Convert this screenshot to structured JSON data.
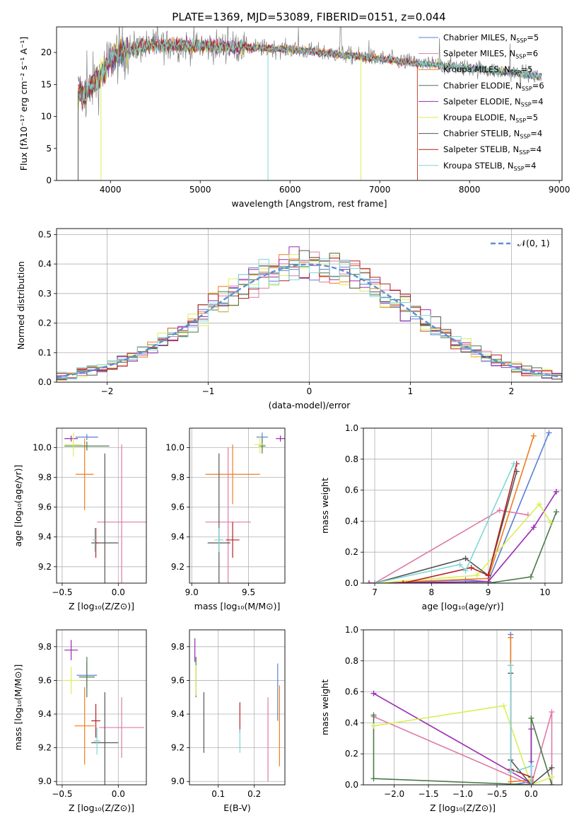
{
  "figure": {
    "title": "PLATE=1369, MJD=53089, FIBERID=0151, z=0.044"
  },
  "colors": [
    "#5b7fd6",
    "#e07aa8",
    "#f07d1e",
    "#4b7a4b",
    "#9a2bb0",
    "#d9ef57",
    "#555555",
    "#b22222",
    "#7fd6d6"
  ],
  "legend": [
    {
      "name": "Chabrier MILES",
      "nssp": 5
    },
    {
      "name": "Salpeter MILES",
      "nssp": 6
    },
    {
      "name": "Kroupa MILES",
      "nssp": 5
    },
    {
      "name": "Chabrier ELODIE",
      "nssp": 6
    },
    {
      "name": "Salpeter ELODIE",
      "nssp": 4
    },
    {
      "name": "Kroupa ELODIE",
      "nssp": 5
    },
    {
      "name": "Chabrier STELIB",
      "nssp": 4
    },
    {
      "name": "Salpeter STELIB",
      "nssp": 4
    },
    {
      "name": "Kroupa STELIB",
      "nssp": 4
    }
  ],
  "chart_data": [
    {
      "id": "spectrum",
      "type": "line",
      "xlabel": "wavelength [Angstrom, rest frame]",
      "ylabel": "Flux [fλ10⁻¹⁷ erg cm⁻² s⁻¹ A⁻¹]",
      "xlim": [
        3400,
        9030
      ],
      "ylim": [
        0,
        24
      ],
      "xticks": [
        4000,
        5000,
        6000,
        7000,
        8000,
        9000
      ],
      "yticks": [
        0,
        5,
        10,
        15,
        20
      ],
      "data_color": "#808080",
      "continuum": [
        [
          3640,
          14
        ],
        [
          3700,
          13
        ],
        [
          3800,
          15
        ],
        [
          3900,
          16.5
        ],
        [
          4000,
          19
        ],
        [
          4100,
          20
        ],
        [
          4200,
          20.5
        ],
        [
          4400,
          21
        ],
        [
          4700,
          21.2
        ],
        [
          5000,
          21
        ],
        [
          5500,
          20.8
        ],
        [
          6000,
          20.5
        ],
        [
          6500,
          19.8
        ],
        [
          7000,
          19
        ],
        [
          7500,
          18.2
        ],
        [
          8000,
          17.6
        ],
        [
          8500,
          16.8
        ],
        [
          8800,
          16.3
        ]
      ],
      "model_extents": [
        [
          3640,
          8800
        ],
        [
          3640,
          8800
        ],
        [
          3640,
          7420
        ],
        [
          3640,
          8800
        ],
        [
          3640,
          8800
        ],
        [
          3640,
          8800
        ],
        [
          3640,
          8800
        ],
        [
          3640,
          7420
        ],
        [
          3640,
          8800
        ]
      ]
    },
    {
      "id": "residuals",
      "type": "histogram",
      "xlabel": "(data-model)/error",
      "ylabel": "Normed distribution",
      "xlim": [
        -2.5,
        2.5
      ],
      "ylim": [
        0,
        0.52
      ],
      "xticks": [
        -2,
        -1,
        0,
        1,
        2
      ],
      "yticks": [
        0.0,
        0.1,
        0.2,
        0.3,
        0.4,
        0.5
      ],
      "bin_width": 0.1,
      "gaussian_label": "𝒩(0, 1)",
      "gaussian_color": "#5b8fd6"
    },
    {
      "id": "age_vs_Z",
      "type": "scatter",
      "xlabel": "Z [log₁₀(Z/Z⊙)]",
      "ylabel": "age  [log₁₀(age/yr)]",
      "xlim": [
        -0.55,
        0.25
      ],
      "ylim": [
        9.09,
        10.13
      ],
      "xticks": [
        -0.5,
        0.0
      ],
      "yticks": [
        9.2,
        9.4,
        9.6,
        9.8,
        10.0
      ],
      "points": [
        {
          "x": -0.28,
          "y": 10.07,
          "xerr": 0.1,
          "yerr": 0.02
        },
        {
          "x": 0.03,
          "y": 9.5,
          "xerr": 0.22,
          "yerr": 0.52
        },
        {
          "x": -0.3,
          "y": 9.82,
          "xerr": 0.08,
          "yerr": 0.24
        },
        {
          "x": -0.28,
          "y": 10.01,
          "xerr": 0.2,
          "yerr": 0.03
        },
        {
          "x": -0.42,
          "y": 10.06,
          "xerr": 0.06,
          "yerr": 0.02
        },
        {
          "x": -0.4,
          "y": 10.02,
          "xerr": 0.08,
          "yerr": 0.08
        },
        {
          "x": -0.12,
          "y": 9.36,
          "xerr": 0.12,
          "yerr": 0.6
        },
        {
          "x": -0.2,
          "y": 9.36,
          "xerr": 0.02,
          "yerr": 0.1
        },
        {
          "x": -0.21,
          "y": 9.38,
          "xerr": 0.02,
          "yerr": 0.08
        }
      ]
    },
    {
      "id": "age_vs_mass",
      "type": "scatter",
      "xlabel": "mass [log₁₀(M/M⊙)]",
      "ylabel": "",
      "xlim": [
        8.98,
        9.82
      ],
      "ylim": [
        9.09,
        10.13
      ],
      "xticks": [
        9.0,
        9.5
      ],
      "yticks": [
        9.2,
        9.4,
        9.6,
        9.8,
        10.0
      ],
      "points": [
        {
          "x": 9.62,
          "y": 10.07,
          "xerr": 0.05,
          "yerr": 0.03
        },
        {
          "x": 9.32,
          "y": 9.5,
          "xerr": 0.2,
          "yerr": 0.5
        },
        {
          "x": 9.36,
          "y": 9.82,
          "xerr": 0.24,
          "yerr": 0.2
        },
        {
          "x": 9.62,
          "y": 10.01,
          "xerr": 0.03,
          "yerr": 0.05
        },
        {
          "x": 9.78,
          "y": 10.06,
          "xerr": 0.04,
          "yerr": 0.02
        },
        {
          "x": 9.6,
          "y": 10.02,
          "xerr": 0.05,
          "yerr": 0.06
        },
        {
          "x": 9.24,
          "y": 9.36,
          "xerr": 0.1,
          "yerr": 0.6
        },
        {
          "x": 9.36,
          "y": 9.38,
          "xerr": 0.06,
          "yerr": 0.12
        },
        {
          "x": 9.24,
          "y": 9.38,
          "xerr": 0.04,
          "yerr": 0.08
        }
      ]
    },
    {
      "id": "weights_vs_age",
      "type": "line",
      "xlabel": "age  [log₁₀(age/yr)]",
      "ylabel": "mass weight",
      "xlim": [
        6.8,
        10.3
      ],
      "ylim": [
        0,
        1
      ],
      "xticks": [
        7,
        8,
        9,
        10
      ],
      "yticks": [
        0.0,
        0.2,
        0.4,
        0.6,
        0.8,
        1.0
      ],
      "series": [
        {
          "x": [
            7.0,
            8.6,
            9.0,
            10.07
          ],
          "y": [
            0.0,
            0.02,
            0.01,
            0.97
          ]
        },
        {
          "x": [
            7.0,
            9.2,
            9.7
          ],
          "y": [
            0.0,
            0.47,
            0.44
          ]
        },
        {
          "x": [
            6.9,
            9.0,
            9.8
          ],
          "y": [
            0.0,
            0.03,
            0.95
          ]
        },
        {
          "x": [
            7.0,
            9.0,
            9.75,
            10.2
          ],
          "y": [
            0.0,
            0.0,
            0.04,
            0.46
          ]
        },
        {
          "x": [
            6.9,
            9.0,
            9.8,
            10.2
          ],
          "y": [
            0.0,
            0.01,
            0.36,
            0.59
          ]
        },
        {
          "x": [
            7.0,
            8.8,
            9.9,
            10.1
          ],
          "y": [
            0.0,
            0.05,
            0.51,
            0.39
          ]
        },
        {
          "x": [
            7.0,
            8.6,
            9.0,
            9.5
          ],
          "y": [
            0.0,
            0.16,
            0.05,
            0.72
          ]
        },
        {
          "x": [
            7.5,
            8.7,
            9.0,
            9.5
          ],
          "y": [
            0.0,
            0.1,
            0.05,
            0.77
          ]
        },
        {
          "x": [
            7.0,
            8.5,
            8.6,
            9.45
          ],
          "y": [
            0.0,
            0.12,
            0.08,
            0.77
          ]
        }
      ]
    },
    {
      "id": "mass_vs_Z",
      "type": "scatter",
      "xlabel": "Z [log₁₀(Z/Z⊙)]",
      "ylabel": "mass [log₁₀(M/M⊙)]",
      "xlim": [
        -0.55,
        0.25
      ],
      "ylim": [
        8.98,
        9.9
      ],
      "xticks": [
        -0.5,
        0.0
      ],
      "yticks": [
        9.0,
        9.2,
        9.4,
        9.6,
        9.8
      ],
      "points": [
        {
          "x": -0.28,
          "y": 9.63,
          "xerr": 0.09,
          "yerr": 0.08
        },
        {
          "x": 0.03,
          "y": 9.32,
          "xerr": 0.2,
          "yerr": 0.18
        },
        {
          "x": -0.3,
          "y": 9.33,
          "xerr": 0.09,
          "yerr": 0.23
        },
        {
          "x": -0.28,
          "y": 9.62,
          "xerr": 0.07,
          "yerr": 0.12
        },
        {
          "x": -0.42,
          "y": 9.78,
          "xerr": 0.06,
          "yerr": 0.06
        },
        {
          "x": -0.42,
          "y": 9.6,
          "xerr": 0.08,
          "yerr": 0.08
        },
        {
          "x": -0.12,
          "y": 9.23,
          "xerr": 0.12,
          "yerr": 0.3
        },
        {
          "x": -0.2,
          "y": 9.36,
          "xerr": 0.04,
          "yerr": 0.1
        },
        {
          "x": -0.19,
          "y": 9.24,
          "xerr": 0.03,
          "yerr": 0.08
        }
      ]
    },
    {
      "id": "mass_vs_ebv",
      "type": "scatter",
      "xlabel": "E(B-V)",
      "ylabel": "",
      "xlim": [
        0.02,
        0.285
      ],
      "ylim": [
        8.98,
        9.9
      ],
      "xticks": [
        0.1,
        0.2
      ],
      "yticks": [
        9.0,
        9.2,
        9.4,
        9.6,
        9.8
      ],
      "points": [
        {
          "x": 0.265,
          "y": 9.53,
          "yerr": 0.17
        },
        {
          "x": 0.238,
          "y": 9.25,
          "yerr": 0.25
        },
        {
          "x": 0.27,
          "y": 9.33,
          "yerr": 0.24
        },
        {
          "x": 0.038,
          "y": 9.62,
          "yerr": 0.12
        },
        {
          "x": 0.035,
          "y": 9.78,
          "yerr": 0.07
        },
        {
          "x": 0.038,
          "y": 9.6,
          "yerr": 0.09
        },
        {
          "x": 0.06,
          "y": 9.35,
          "yerr": 0.18
        },
        {
          "x": 0.16,
          "y": 9.38,
          "yerr": 0.09
        },
        {
          "x": 0.16,
          "y": 9.24,
          "yerr": 0.07
        }
      ]
    },
    {
      "id": "weights_vs_Z",
      "type": "line",
      "xlabel": "Z [log₁₀(Z/Z⊙)]",
      "ylabel": "mass weight",
      "xlim": [
        -2.45,
        0.45
      ],
      "ylim": [
        0,
        1
      ],
      "xticks": [
        -2.0,
        -1.5,
        -1.0,
        -0.5,
        0.0
      ],
      "yticks": [
        0.0,
        0.2,
        0.4,
        0.6,
        0.8,
        1.0
      ],
      "series": [
        {
          "x": [
            -0.3,
            -0.3,
            0.0,
            0.0
          ],
          "y": [
            0.97,
            0.0,
            0.02,
            0.15
          ]
        },
        {
          "x": [
            -2.3,
            0.0,
            0.3,
            0.3
          ],
          "y": [
            0.44,
            0.0,
            0.47,
            0.0
          ]
        },
        {
          "x": [
            -0.3,
            -0.3,
            0.0
          ],
          "y": [
            0.95,
            0.02,
            0.03
          ]
        },
        {
          "x": [
            -2.3,
            -2.3,
            0.0,
            0.0,
            0.3
          ],
          "y": [
            0.45,
            0.04,
            0.0,
            0.43,
            0.0
          ]
        },
        {
          "x": [
            -2.3,
            0.0,
            0.0
          ],
          "y": [
            0.59,
            0.01,
            0.36
          ]
        },
        {
          "x": [
            -2.3,
            -0.4,
            0.0,
            0.3
          ],
          "y": [
            0.38,
            0.51,
            0.0,
            0.05
          ]
        },
        {
          "x": [
            -0.3,
            -0.3,
            0.0,
            0.3
          ],
          "y": [
            0.72,
            0.16,
            0.0,
            0.11
          ]
        },
        {
          "x": [
            -0.3,
            -0.3,
            0.0
          ],
          "y": [
            0.77,
            0.1,
            0.05
          ]
        },
        {
          "x": [
            -0.3,
            -0.3,
            0.0,
            0.0
          ],
          "y": [
            0.77,
            0.08,
            0.12,
            0.0
          ]
        }
      ]
    }
  ]
}
